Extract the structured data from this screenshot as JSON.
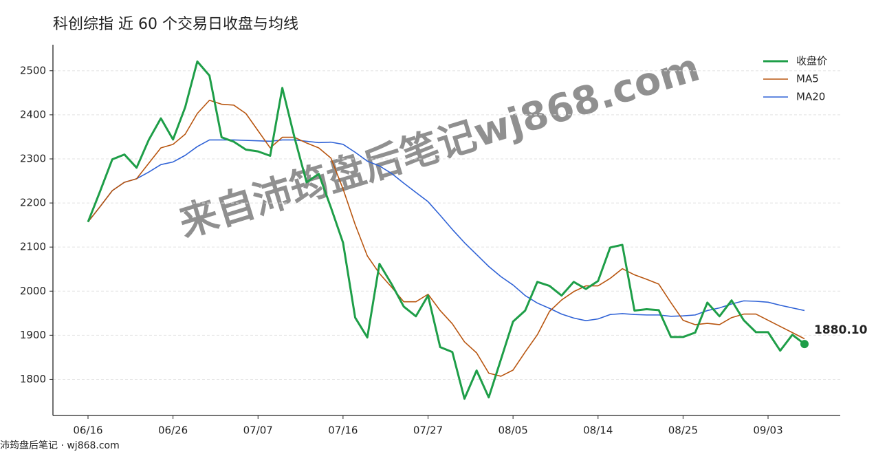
{
  "chart_data": {
    "type": "line",
    "title": "科创综指 近 60 个交易日收盘与均线",
    "watermark": "来自沛筠盘后笔记wj868.com",
    "footer": "沛筠盘后笔记 · wj868.com",
    "categories": [
      "06/16",
      null,
      null,
      null,
      null,
      null,
      null,
      "06/26",
      null,
      null,
      null,
      null,
      null,
      null,
      "07/07",
      null,
      null,
      null,
      null,
      null,
      null,
      "07/16",
      null,
      null,
      null,
      null,
      null,
      null,
      "07/27",
      null,
      null,
      null,
      null,
      null,
      null,
      "08/05",
      null,
      null,
      null,
      null,
      null,
      null,
      "08/14",
      null,
      null,
      null,
      null,
      null,
      null,
      "08/25",
      null,
      null,
      null,
      null,
      null,
      null,
      "09/03",
      null,
      null,
      null
    ],
    "series": [
      {
        "name": "收盘价",
        "color": "#1e9e48",
        "width": 3,
        "values": [
          2157,
          2227,
          2299,
          2310,
          2280,
          2343,
          2392,
          2344,
          2417,
          2521,
          2489,
          2349,
          2339,
          2321,
          2317,
          2307,
          2461,
          2349,
          2247,
          2266,
          2190,
          2110,
          1940,
          1895,
          2062,
          2016,
          1965,
          1943,
          1990,
          1873,
          1862,
          1756,
          1820,
          1759,
          1845,
          1931,
          1956,
          2021,
          2012,
          1990,
          2021,
          2005,
          2023,
          2099,
          2105,
          1956,
          1959,
          1957,
          1896,
          1896,
          1906,
          1974,
          1943,
          1979,
          1934,
          1907,
          1907,
          1865,
          1901,
          1880.1
        ],
        "value_labels": [
          null,
          null,
          null,
          null,
          null,
          null,
          null,
          null,
          null,
          null,
          null,
          null,
          null,
          null,
          null,
          null,
          null,
          null,
          null,
          null,
          null,
          null,
          null,
          null,
          null,
          null,
          null,
          null,
          null,
          null,
          null,
          null,
          null,
          null,
          null,
          null,
          null,
          null,
          null,
          null,
          null,
          null,
          null,
          null,
          null,
          null,
          null,
          null,
          null,
          null,
          null,
          null,
          null,
          null,
          null,
          null,
          null,
          null,
          null,
          "1880.10"
        ]
      },
      {
        "name": "MA5",
        "color": "#b8550f",
        "width": 1.6,
        "values": [
          2157,
          2192,
          2228,
          2247,
          2255,
          2290,
          2325,
          2333,
          2356,
          2403,
          2433,
          2424,
          2422,
          2403,
          2364,
          2325,
          2349,
          2349,
          2336,
          2325,
          2302,
          2232,
          2151,
          2080,
          2040,
          2009,
          1976,
          1976,
          1993,
          1956,
          1926,
          1885,
          1860,
          1814,
          1807,
          1821,
          1862,
          1901,
          1954,
          1980,
          1999,
          2012,
          2012,
          2029,
          2051,
          2037,
          2027,
          2016,
          1974,
          1934,
          1924,
          1927,
          1924,
          1940,
          1948,
          1948,
          1934,
          1920,
          1906,
          1892
        ]
      },
      {
        "name": "MA20",
        "color": "#2f62d6",
        "width": 1.6,
        "values": [
          2157,
          2192,
          2228,
          2247,
          2255,
          2270,
          2287,
          2293,
          2308,
          2328,
          2343,
          2343,
          2343,
          2342,
          2341,
          2340,
          2343,
          2343,
          2340,
          2337,
          2338,
          2333,
          2315,
          2295,
          2284,
          2267,
          2245,
          2224,
          2203,
          2172,
          2140,
          2110,
          2083,
          2056,
          2033,
          2014,
          1990,
          1973,
          1961,
          1948,
          1939,
          1933,
          1937,
          1947,
          1949,
          1947,
          1946,
          1946,
          1943,
          1944,
          1946,
          1956,
          1962,
          1971,
          1978,
          1977,
          1975,
          1968,
          1962,
          1956
        ]
      }
    ],
    "ylim": [
      1718,
      2559
    ],
    "yticks": [
      1800,
      1900,
      2000,
      2100,
      2200,
      2300,
      2400,
      2500
    ],
    "grid": true,
    "legend": "upper-right"
  }
}
